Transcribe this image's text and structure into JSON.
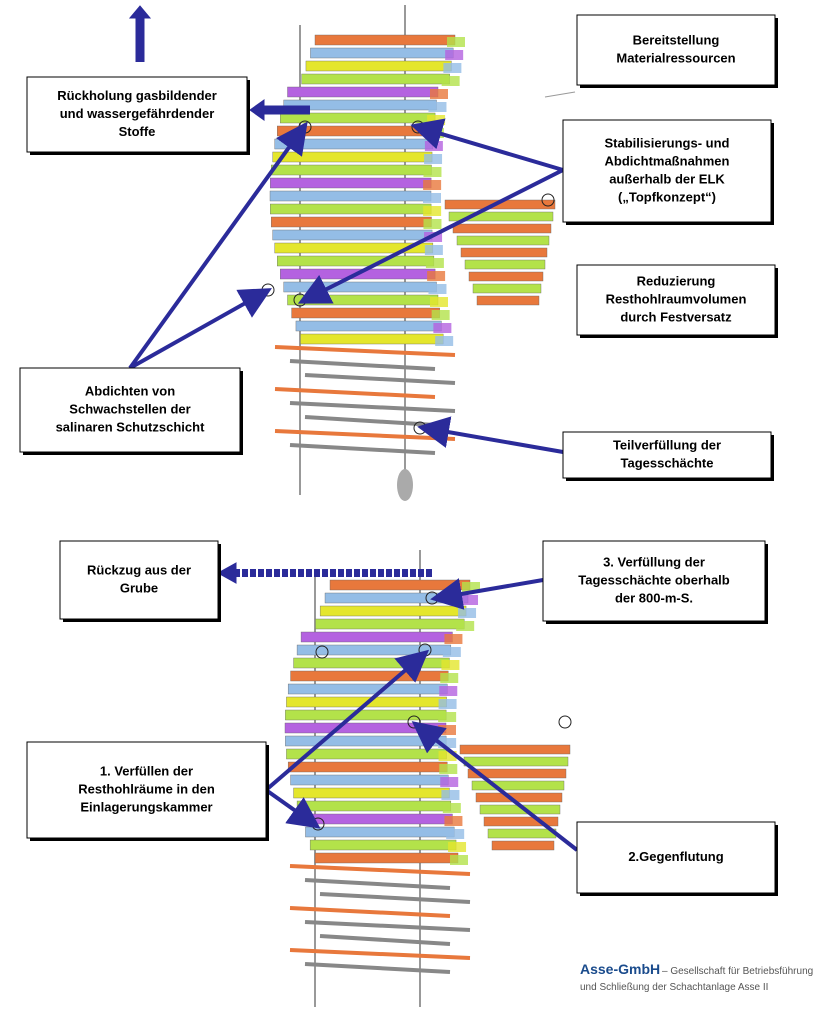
{
  "top_panel": {
    "boxes": [
      {
        "lines": [
          "Rückholung  gasbildender",
          "und wassergefährdender",
          "Stoffe"
        ]
      },
      {
        "lines": [
          "Bereitstellung",
          "Materialressourcen"
        ]
      },
      {
        "lines": [
          "Stabilisierungs- und",
          "Abdichtmaßnahmen",
          "außerhalb der ELK",
          "(„Topfkonzept“)"
        ]
      },
      {
        "lines": [
          "Reduzierung",
          "Resthohlraumvolumen",
          "durch Festversatz"
        ]
      },
      {
        "lines": [
          "Abdichten von",
          "Schwachstellen der",
          "salinaren Schutzschicht"
        ]
      },
      {
        "lines": [
          "Teilverfüllung der",
          "Tagesschächte"
        ]
      }
    ]
  },
  "bottom_panel": {
    "boxes": [
      {
        "lines": [
          "Rückzug aus der",
          "Grube"
        ]
      },
      {
        "lines": [
          "3. Verfüllung der",
          "Tagesschächte oberhalb",
          "der 800-m-S."
        ]
      },
      {
        "lines": [
          "1. Verfüllen der",
          "Resthohlräume in den",
          "Einlagerungskammer"
        ]
      },
      {
        "lines": [
          "2.Gegenflutung"
        ]
      }
    ]
  },
  "footer": {
    "company": "Asse-GmbH",
    "line1": "– Gesellschaft für Betriebsführung",
    "line2": "und Schließung der Schachtanlage Asse II"
  }
}
